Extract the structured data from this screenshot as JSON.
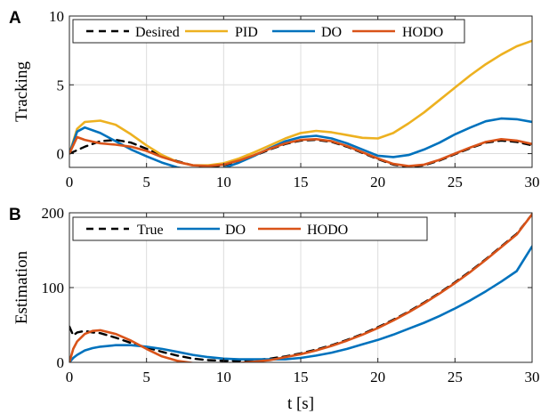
{
  "chart_data": [
    {
      "panel": "A",
      "type": "line",
      "ylabel": "Tracking",
      "xlabel": "",
      "xlim": [
        0,
        30
      ],
      "ylim": [
        -1,
        10
      ],
      "xticks": [
        "0",
        "5",
        "10",
        "15",
        "20",
        "25",
        "30"
      ],
      "yticks": [
        "0",
        "5",
        "10"
      ],
      "grid": true,
      "legend_placement": "top-left",
      "x": [
        0,
        0.5,
        1,
        2,
        3,
        4,
        5,
        6,
        7,
        8,
        9,
        10,
        11,
        12,
        13,
        14,
        15,
        16,
        17,
        18,
        19,
        20,
        21,
        22,
        23,
        24,
        25,
        26,
        27,
        28,
        29,
        30
      ],
      "series": [
        {
          "name": "Desired",
          "color": "#000000",
          "dash": true,
          "values": [
            0.0,
            0.25,
            0.5,
            0.9,
            1.0,
            0.8,
            0.35,
            -0.15,
            -0.55,
            -0.85,
            -0.95,
            -0.85,
            -0.55,
            -0.15,
            0.3,
            0.7,
            0.95,
            1.0,
            0.85,
            0.5,
            0.05,
            -0.4,
            -0.8,
            -0.95,
            -0.85,
            -0.5,
            -0.05,
            0.4,
            0.8,
            0.95,
            0.85,
            0.6
          ]
        },
        {
          "name": "PID",
          "color": "#EDB120",
          "dash": false,
          "values": [
            0.0,
            1.8,
            2.3,
            2.4,
            2.1,
            1.4,
            0.6,
            -0.1,
            -0.6,
            -0.85,
            -0.85,
            -0.7,
            -0.35,
            0.1,
            0.6,
            1.1,
            1.5,
            1.65,
            1.55,
            1.35,
            1.15,
            1.1,
            1.5,
            2.2,
            3.0,
            3.9,
            4.8,
            5.7,
            6.5,
            7.2,
            7.8,
            8.2
          ]
        },
        {
          "name": "DO",
          "color": "#0072BD",
          "dash": false,
          "values": [
            0.0,
            1.6,
            1.9,
            1.5,
            0.9,
            0.3,
            -0.2,
            -0.65,
            -1.0,
            -1.2,
            -1.25,
            -1.05,
            -0.65,
            -0.15,
            0.4,
            0.9,
            1.2,
            1.3,
            1.1,
            0.75,
            0.3,
            -0.15,
            -0.25,
            -0.1,
            0.3,
            0.8,
            1.4,
            1.9,
            2.35,
            2.55,
            2.5,
            2.3
          ]
        },
        {
          "name": "HODO",
          "color": "#D95319",
          "dash": false,
          "values": [
            0.0,
            1.2,
            1.0,
            0.75,
            0.65,
            0.5,
            0.2,
            -0.25,
            -0.6,
            -0.85,
            -0.9,
            -0.8,
            -0.5,
            -0.1,
            0.35,
            0.75,
            1.0,
            1.05,
            0.9,
            0.55,
            0.1,
            -0.35,
            -0.75,
            -0.9,
            -0.8,
            -0.45,
            0.0,
            0.45,
            0.85,
            1.05,
            0.95,
            0.7
          ]
        }
      ]
    },
    {
      "panel": "B",
      "type": "line",
      "ylabel": "Estimation",
      "xlabel": "t [s]",
      "xlim": [
        0,
        30
      ],
      "ylim": [
        0,
        200
      ],
      "xticks": [
        "0",
        "5",
        "10",
        "15",
        "20",
        "25",
        "30"
      ],
      "yticks": [
        "0",
        "100",
        "200"
      ],
      "grid": true,
      "legend_placement": "top-left",
      "x": [
        0,
        0.25,
        0.5,
        1,
        1.5,
        2,
        3,
        4,
        5,
        6,
        7,
        8,
        9,
        10,
        11,
        12,
        13,
        14,
        15,
        16,
        17,
        18,
        19,
        20,
        21,
        22,
        23,
        24,
        25,
        26,
        27,
        28,
        29,
        30
      ],
      "series": [
        {
          "name": "True",
          "color": "#000000",
          "dash": true,
          "values": [
            48,
            36,
            40,
            42,
            40,
            39,
            33,
            26,
            20,
            14,
            9,
            5,
            3,
            2,
            2,
            3,
            5,
            8,
            12,
            17,
            23,
            30,
            38,
            47,
            57,
            68,
            80,
            93,
            107,
            122,
            138,
            155,
            172,
            198
          ]
        },
        {
          "name": "DO",
          "color": "#0072BD",
          "dash": false,
          "values": [
            0,
            6,
            10,
            16,
            19,
            21,
            23,
            23,
            21,
            18,
            14,
            10,
            7,
            5,
            4,
            4,
            4,
            4,
            6,
            9,
            13,
            18,
            24,
            30,
            37,
            45,
            53,
            62,
            72,
            83,
            95,
            108,
            122,
            155
          ]
        },
        {
          "name": "HODO",
          "color": "#D95319",
          "dash": false,
          "values": [
            0,
            18,
            28,
            38,
            42,
            43,
            38,
            29,
            18,
            8,
            2,
            -1,
            -2,
            -2,
            -1,
            1,
            3,
            7,
            11,
            16,
            22,
            29,
            37,
            46,
            56,
            67,
            79,
            92,
            106,
            121,
            137,
            154,
            171,
            198
          ]
        }
      ]
    }
  ]
}
